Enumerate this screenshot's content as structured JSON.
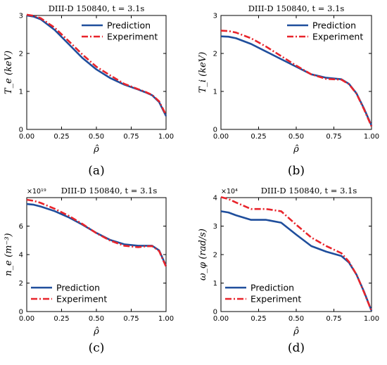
{
  "chart_data": [
    {
      "type": "line",
      "panel_label": "(a)",
      "title": "DIII-D 150840, t = 3.1s",
      "xlabel": "ρ̂",
      "ylabel": "T_e (keV)",
      "axis_multiplier": "",
      "xlim": [
        0,
        1
      ],
      "ylim": [
        0,
        3
      ],
      "xticks": [
        0,
        0.25,
        0.5,
        0.75,
        1.0
      ],
      "xtick_labels": [
        "0.00",
        "0.25",
        "0.50",
        "0.75",
        "1.00"
      ],
      "yticks": [
        0,
        1,
        2,
        3
      ],
      "ytick_labels": [
        "0",
        "1",
        "2",
        "3"
      ],
      "legend_position": "top-right",
      "x": [
        0.0,
        0.05,
        0.1,
        0.2,
        0.3,
        0.4,
        0.5,
        0.6,
        0.7,
        0.8,
        0.85,
        0.9,
        0.95,
        1.0
      ],
      "series": [
        {
          "name": "Prediction",
          "color": "#1f4e9c",
          "dash": "solid",
          "values": [
            3.0,
            2.97,
            2.9,
            2.62,
            2.25,
            1.88,
            1.58,
            1.35,
            1.18,
            1.05,
            0.98,
            0.9,
            0.72,
            0.35
          ]
        },
        {
          "name": "Experiment",
          "color": "#e8242b",
          "dash": "dashdot",
          "values": [
            3.02,
            2.99,
            2.93,
            2.68,
            2.33,
            1.97,
            1.65,
            1.42,
            1.2,
            1.06,
            0.99,
            0.91,
            0.74,
            0.38
          ]
        }
      ]
    },
    {
      "type": "line",
      "panel_label": "(b)",
      "title": "DIII-D 150840, t = 3.1s",
      "xlabel": "ρ̂",
      "ylabel": "T_i (keV)",
      "axis_multiplier": "",
      "xlim": [
        0,
        1
      ],
      "ylim": [
        0,
        3
      ],
      "xticks": [
        0,
        0.25,
        0.5,
        0.75,
        1.0
      ],
      "xtick_labels": [
        "0.00",
        "0.25",
        "0.50",
        "0.75",
        "1.00"
      ],
      "yticks": [
        0,
        1,
        2,
        3
      ],
      "ytick_labels": [
        "0",
        "1",
        "2",
        "3"
      ],
      "legend_position": "top-right",
      "x": [
        0.0,
        0.05,
        0.1,
        0.2,
        0.3,
        0.4,
        0.5,
        0.6,
        0.7,
        0.8,
        0.85,
        0.9,
        0.95,
        1.0
      ],
      "series": [
        {
          "name": "Prediction",
          "color": "#1f4e9c",
          "dash": "solid",
          "values": [
            2.45,
            2.44,
            2.4,
            2.25,
            2.05,
            1.85,
            1.65,
            1.45,
            1.36,
            1.32,
            1.2,
            0.95,
            0.55,
            0.1
          ]
        },
        {
          "name": "Experiment",
          "color": "#e8242b",
          "dash": "dashdot",
          "values": [
            2.6,
            2.59,
            2.55,
            2.4,
            2.18,
            1.93,
            1.68,
            1.45,
            1.33,
            1.31,
            1.19,
            0.94,
            0.53,
            0.08
          ]
        }
      ]
    },
    {
      "type": "line",
      "panel_label": "(c)",
      "title": "DIII-D 150840, t = 3.1s",
      "xlabel": "ρ̂",
      "ylabel": "n_e (m⁻³)",
      "axis_multiplier": "×10¹⁹",
      "xlim": [
        0,
        1
      ],
      "ylim": [
        0,
        8
      ],
      "xticks": [
        0,
        0.25,
        0.5,
        0.75,
        1.0
      ],
      "xtick_labels": [
        "0.00",
        "0.25",
        "0.50",
        "0.75",
        "1.00"
      ],
      "yticks": [
        0,
        2,
        4,
        6
      ],
      "ytick_labels": [
        "0",
        "2",
        "4",
        "6"
      ],
      "legend_position": "bottom-left",
      "x": [
        0.0,
        0.05,
        0.1,
        0.2,
        0.3,
        0.4,
        0.5,
        0.6,
        0.7,
        0.8,
        0.85,
        0.9,
        0.95,
        1.0
      ],
      "series": [
        {
          "name": "Prediction",
          "color": "#1f4e9c",
          "dash": "solid",
          "values": [
            7.55,
            7.5,
            7.38,
            7.05,
            6.62,
            6.1,
            5.52,
            5.02,
            4.72,
            4.62,
            4.62,
            4.62,
            4.3,
            3.2
          ]
        },
        {
          "name": "Experiment",
          "color": "#e8242b",
          "dash": "dashdot",
          "values": [
            7.85,
            7.78,
            7.63,
            7.22,
            6.73,
            6.15,
            5.5,
            4.98,
            4.62,
            4.52,
            4.58,
            4.6,
            4.25,
            3.15
          ]
        }
      ]
    },
    {
      "type": "line",
      "panel_label": "(d)",
      "title": "DIII-D 150840, t = 3.1s",
      "xlabel": "ρ̂",
      "ylabel": "ω_φ (rad/s)",
      "axis_multiplier": "×10⁴",
      "xlim": [
        0,
        1
      ],
      "ylim": [
        0,
        4
      ],
      "xticks": [
        0,
        0.25,
        0.5,
        0.75,
        1.0
      ],
      "xtick_labels": [
        "0.00",
        "0.25",
        "0.50",
        "0.75",
        "1.00"
      ],
      "yticks": [
        0,
        1,
        2,
        3,
        4
      ],
      "ytick_labels": [
        "0",
        "1",
        "2",
        "3",
        "4"
      ],
      "legend_position": "bottom-left",
      "x": [
        0.0,
        0.05,
        0.1,
        0.2,
        0.3,
        0.4,
        0.5,
        0.6,
        0.7,
        0.8,
        0.85,
        0.9,
        0.95,
        1.0
      ],
      "series": [
        {
          "name": "Prediction",
          "color": "#1f4e9c",
          "dash": "solid",
          "values": [
            3.52,
            3.48,
            3.38,
            3.22,
            3.22,
            3.12,
            2.7,
            2.3,
            2.1,
            1.95,
            1.72,
            1.3,
            0.7,
            0.03
          ]
        },
        {
          "name": "Experiment",
          "color": "#e8242b",
          "dash": "dashdot",
          "values": [
            4.02,
            3.95,
            3.83,
            3.6,
            3.6,
            3.52,
            3.05,
            2.6,
            2.3,
            2.05,
            1.75,
            1.3,
            0.68,
            0.02
          ]
        }
      ]
    }
  ]
}
